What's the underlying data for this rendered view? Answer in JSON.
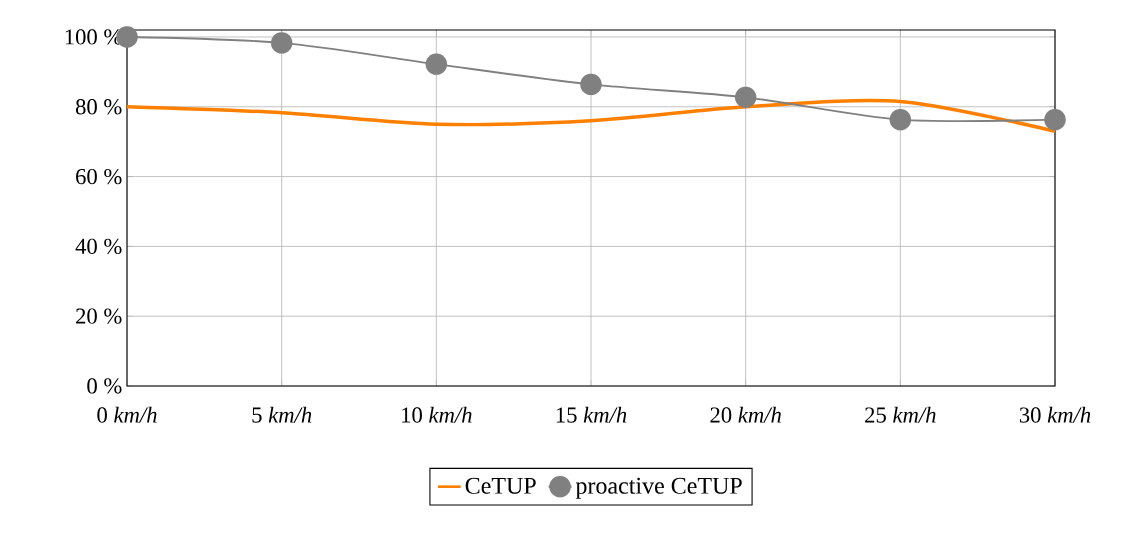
{
  "chart_data": {
    "type": "line",
    "x": [
      0,
      5,
      10,
      15,
      20,
      25,
      30
    ],
    "series": [
      {
        "name": "CeTUP",
        "color": "#ff8000",
        "marker": "none",
        "values": [
          80,
          78.3,
          75,
          76,
          80,
          81.5,
          73
        ]
      },
      {
        "name": "proactive CeTUP",
        "color": "#808080",
        "marker": "circle",
        "values": [
          100,
          98.3,
          92.2,
          86.4,
          82.7,
          76.3,
          76.3
        ]
      }
    ],
    "xlim": [
      0,
      30
    ],
    "xticks": [
      {
        "value": 0,
        "label": "0 *km/h*"
      },
      {
        "value": 5,
        "label": "5 *km/h*"
      },
      {
        "value": 10,
        "label": "10 *km/h*"
      },
      {
        "value": 15,
        "label": "15 *km/h*"
      },
      {
        "value": 20,
        "label": "20 *km/h*"
      },
      {
        "value": 25,
        "label": "25 *km/h*"
      },
      {
        "value": 30,
        "label": "30 *km/h*"
      }
    ],
    "ylim": [
      0,
      102
    ],
    "yticks": [
      {
        "value": 0,
        "label": "0 %"
      },
      {
        "value": 20,
        "label": "20 %"
      },
      {
        "value": 40,
        "label": "40 %"
      },
      {
        "value": 60,
        "label": "60 %"
      },
      {
        "value": 80,
        "label": "80 %"
      },
      {
        "value": 100,
        "label": "100 %"
      }
    ],
    "grid": true,
    "legend": "bottom"
  }
}
